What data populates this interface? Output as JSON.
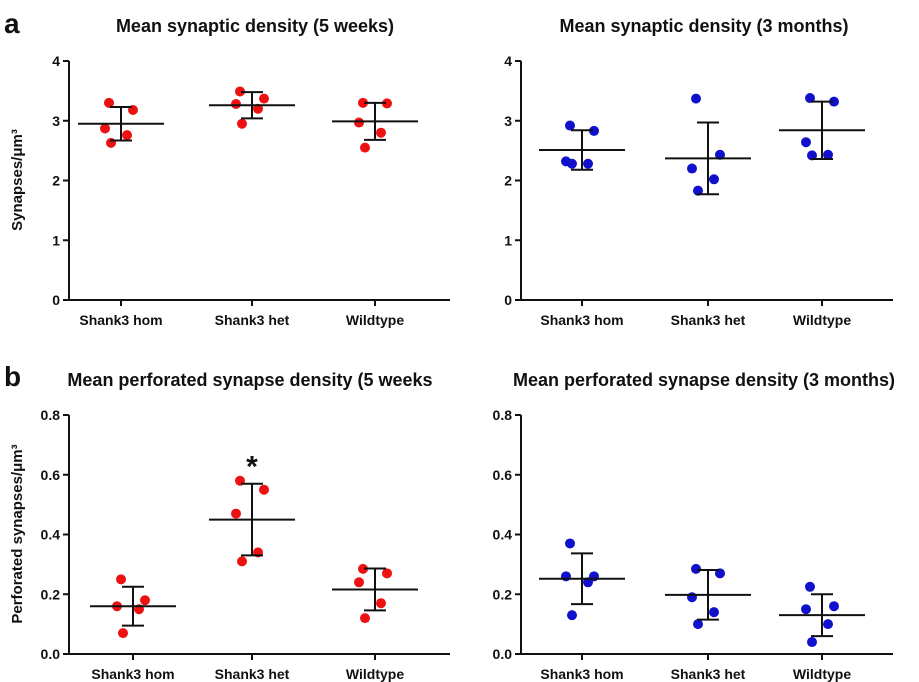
{
  "panel_labels": [
    "a",
    "b"
  ],
  "colors": {
    "red_dots": "#ee1111",
    "blue_dots": "#1111cc",
    "axes": "#111111"
  },
  "chart_data": [
    {
      "type": "scatter",
      "title": "Mean synaptic density (5 weeks)",
      "ylabel": "Synapses/μm³",
      "ylim": [
        0,
        4
      ],
      "yticks": [
        "0",
        "1",
        "2",
        "3",
        "4"
      ],
      "categories": [
        "Shank3 hom",
        "Shank3 het",
        "Wildtype"
      ],
      "color": "#ee1111",
      "points": [
        [
          3.3,
          3.18,
          2.87,
          2.76,
          2.63
        ],
        [
          3.49,
          3.37,
          3.28,
          3.2,
          2.95
        ],
        [
          3.3,
          3.29,
          2.97,
          2.8,
          2.55
        ]
      ],
      "mean": [
        2.95,
        3.26,
        2.99
      ],
      "sd": [
        0.28,
        0.22,
        0.31
      ],
      "annotations": [
        "",
        "",
        ""
      ]
    },
    {
      "type": "scatter",
      "title": "Mean synaptic density (3 months)",
      "ylabel": "",
      "ylim": [
        0,
        4
      ],
      "yticks": [
        "0",
        "1",
        "2",
        "3",
        "4"
      ],
      "categories": [
        "Shank3 hom",
        "Shank3 het",
        "Wildtype"
      ],
      "color": "#1111cc",
      "points": [
        [
          2.92,
          2.83,
          2.32,
          2.28,
          2.28
        ],
        [
          3.37,
          2.43,
          2.2,
          2.02,
          1.83
        ],
        [
          3.38,
          3.32,
          2.64,
          2.43,
          2.42
        ]
      ],
      "mean": [
        2.51,
        2.37,
        2.84
      ],
      "sd": [
        0.33,
        0.6,
        0.48
      ],
      "annotations": [
        "",
        "",
        ""
      ]
    },
    {
      "type": "scatter",
      "title": "Mean perforated synapse density (5 weeks",
      "ylabel": "Perforated synapses/μm³",
      "ylim": [
        0,
        0.8
      ],
      "yticks": [
        "0.0",
        "0.2",
        "0.4",
        "0.6",
        "0.8"
      ],
      "categories": [
        "Shank3 hom",
        "Shank3 het",
        "Wildtype"
      ],
      "color": "#ee1111",
      "points": [
        [
          0.25,
          0.18,
          0.16,
          0.15,
          0.07
        ],
        [
          0.58,
          0.55,
          0.47,
          0.34,
          0.31
        ],
        [
          0.285,
          0.27,
          0.24,
          0.17,
          0.12
        ]
      ],
      "mean": [
        0.16,
        0.45,
        0.216
      ],
      "sd": [
        0.065,
        0.12,
        0.07
      ],
      "annotations": [
        "",
        "*",
        ""
      ]
    },
    {
      "type": "scatter",
      "title": "Mean perforated synapse density (3 months)",
      "ylabel": "",
      "ylim": [
        0,
        0.8
      ],
      "yticks": [
        "0.0",
        "0.2",
        "0.4",
        "0.6",
        "0.8"
      ],
      "categories": [
        "Shank3 hom",
        "Shank3 het",
        "Wildtype"
      ],
      "color": "#1111cc",
      "points": [
        [
          0.37,
          0.26,
          0.26,
          0.24,
          0.13
        ],
        [
          0.285,
          0.27,
          0.19,
          0.14,
          0.1
        ],
        [
          0.225,
          0.16,
          0.15,
          0.1,
          0.04
        ]
      ],
      "mean": [
        0.252,
        0.198,
        0.13
      ],
      "sd": [
        0.085,
        0.083,
        0.07
      ],
      "annotations": [
        "",
        "",
        ""
      ]
    }
  ]
}
